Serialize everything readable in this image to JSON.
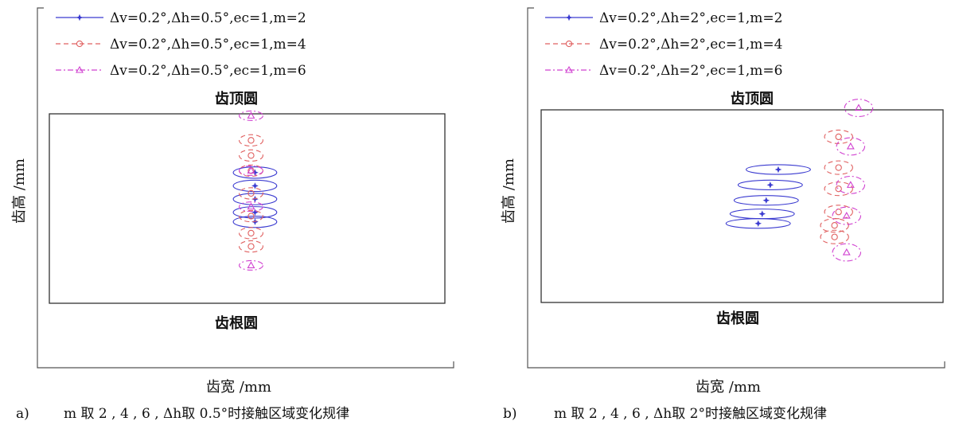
{
  "chart_data": [
    {
      "type": "scatter",
      "panel_label": "a)",
      "caption": "m 取 2 , 4 , 6 , Δh取 0.5°时接触区域变化规律",
      "xlabel": "齿宽 /mm",
      "ylabel": "齿高 /mm",
      "top_label": "齿顶圆",
      "bottom_label": "齿根圆",
      "legend_position": "top-left",
      "series": [
        {
          "name": "Δv=0.2°,Δh=0.5°,ec=1,m=2",
          "color": "#3a3ad0",
          "marker": "star",
          "dash": "solid",
          "ellipses": [
            {
              "cx": 0.52,
              "cy": 0.31,
              "rx": 0.055,
              "ry": 0.03
            },
            {
              "cx": 0.52,
              "cy": 0.38,
              "rx": 0.055,
              "ry": 0.03
            },
            {
              "cx": 0.52,
              "cy": 0.45,
              "rx": 0.055,
              "ry": 0.03
            },
            {
              "cx": 0.52,
              "cy": 0.52,
              "rx": 0.055,
              "ry": 0.03
            },
            {
              "cx": 0.52,
              "cy": 0.57,
              "rx": 0.055,
              "ry": 0.03
            }
          ]
        },
        {
          "name": "Δv=0.2°,Δh=0.5°,ec=1,m=4",
          "color": "#e06060",
          "marker": "circle",
          "dash": "dashed",
          "ellipses": [
            {
              "cx": 0.51,
              "cy": 0.14,
              "rx": 0.03,
              "ry": 0.03
            },
            {
              "cx": 0.51,
              "cy": 0.22,
              "rx": 0.03,
              "ry": 0.03
            },
            {
              "cx": 0.51,
              "cy": 0.3,
              "rx": 0.03,
              "ry": 0.03
            },
            {
              "cx": 0.51,
              "cy": 0.42,
              "rx": 0.03,
              "ry": 0.03
            },
            {
              "cx": 0.51,
              "cy": 0.54,
              "rx": 0.03,
              "ry": 0.03
            },
            {
              "cx": 0.51,
              "cy": 0.63,
              "rx": 0.03,
              "ry": 0.03
            },
            {
              "cx": 0.51,
              "cy": 0.7,
              "rx": 0.03,
              "ry": 0.03
            }
          ]
        },
        {
          "name": "Δv=0.2°,Δh=0.5°,ec=1,m=6",
          "color": "#d040d0",
          "marker": "triangle",
          "dash": "dashdot",
          "ellipses": [
            {
              "cx": 0.51,
              "cy": 0.01,
              "rx": 0.03,
              "ry": 0.025
            },
            {
              "cx": 0.51,
              "cy": 0.3,
              "rx": 0.03,
              "ry": 0.025
            },
            {
              "cx": 0.51,
              "cy": 0.49,
              "rx": 0.03,
              "ry": 0.025
            },
            {
              "cx": 0.51,
              "cy": 0.8,
              "rx": 0.03,
              "ry": 0.025
            }
          ]
        }
      ]
    },
    {
      "type": "scatter",
      "panel_label": "b)",
      "caption": "m 取 2 , 4 , 6 , Δh取 2°时接触区域变化规律",
      "xlabel": "齿宽 /mm",
      "ylabel": "齿高 /mm",
      "top_label": "齿顶圆",
      "bottom_label": "齿根圆",
      "legend_position": "top-left",
      "series": [
        {
          "name": "Δv=0.2°,Δh=2°,ec=1,m=2",
          "color": "#3a3ad0",
          "marker": "star",
          "dash": "solid",
          "ellipses": [
            {
              "cx": 0.59,
              "cy": 0.31,
              "rx": 0.08,
              "ry": 0.025
            },
            {
              "cx": 0.57,
              "cy": 0.39,
              "rx": 0.08,
              "ry": 0.025
            },
            {
              "cx": 0.56,
              "cy": 0.47,
              "rx": 0.08,
              "ry": 0.025
            },
            {
              "cx": 0.55,
              "cy": 0.54,
              "rx": 0.08,
              "ry": 0.025
            },
            {
              "cx": 0.54,
              "cy": 0.59,
              "rx": 0.08,
              "ry": 0.025
            }
          ]
        },
        {
          "name": "Δv=0.2°,Δh=2°,ec=1,m=4",
          "color": "#e06060",
          "marker": "circle",
          "dash": "dashed",
          "ellipses": [
            {
              "cx": 0.74,
              "cy": 0.14,
              "rx": 0.035,
              "ry": 0.035
            },
            {
              "cx": 0.74,
              "cy": 0.3,
              "rx": 0.035,
              "ry": 0.035
            },
            {
              "cx": 0.74,
              "cy": 0.41,
              "rx": 0.035,
              "ry": 0.035
            },
            {
              "cx": 0.74,
              "cy": 0.53,
              "rx": 0.035,
              "ry": 0.035
            },
            {
              "cx": 0.73,
              "cy": 0.6,
              "rx": 0.035,
              "ry": 0.035
            },
            {
              "cx": 0.73,
              "cy": 0.66,
              "rx": 0.035,
              "ry": 0.035
            }
          ]
        },
        {
          "name": "Δv=0.2°,Δh=2°,ec=1,m=6",
          "color": "#d040d0",
          "marker": "triangle",
          "dash": "dashdot",
          "ellipses": [
            {
              "cx": 0.79,
              "cy": -0.01,
              "rx": 0.035,
              "ry": 0.045
            },
            {
              "cx": 0.77,
              "cy": 0.19,
              "rx": 0.035,
              "ry": 0.045
            },
            {
              "cx": 0.77,
              "cy": 0.39,
              "rx": 0.035,
              "ry": 0.045
            },
            {
              "cx": 0.76,
              "cy": 0.55,
              "rx": 0.035,
              "ry": 0.045
            },
            {
              "cx": 0.76,
              "cy": 0.74,
              "rx": 0.035,
              "ry": 0.045
            }
          ]
        }
      ]
    }
  ]
}
